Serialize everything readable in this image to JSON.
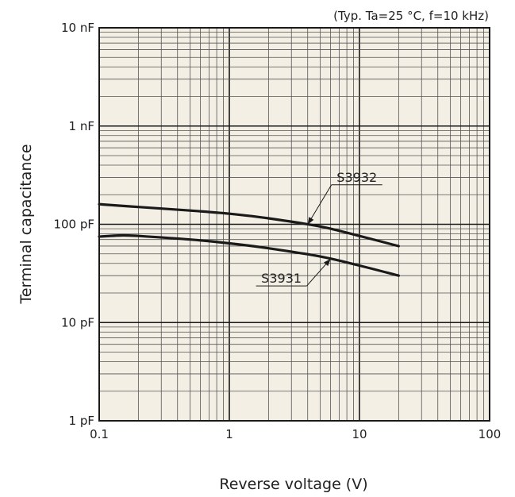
{
  "chart_data": {
    "type": "line",
    "condition_note": "(Typ. Ta=25 °C, f=10 kHz)",
    "xlabel": "Reverse voltage (V)",
    "ylabel": "Terminal capacitance",
    "x_scale": "log",
    "y_scale": "log",
    "xlim": [
      0.1,
      100
    ],
    "ylim_pF": [
      1,
      10000
    ],
    "x_tick_labels": [
      {
        "value": 0.1,
        "label": "0.1"
      },
      {
        "value": 1,
        "label": "1"
      },
      {
        "value": 10,
        "label": "10"
      },
      {
        "value": 100,
        "label": "100"
      }
    ],
    "y_tick_labels": [
      {
        "value": 1,
        "label": "1 pF"
      },
      {
        "value": 10,
        "label": "10 pF"
      },
      {
        "value": 100,
        "label": "100 pF"
      },
      {
        "value": 1000,
        "label": "1 nF"
      },
      {
        "value": 10000,
        "label": "10 nF"
      }
    ],
    "grid": true,
    "series": [
      {
        "name": "S3932",
        "x": [
          0.1,
          0.2,
          0.5,
          1,
          2,
          5,
          10,
          20
        ],
        "y_pF": [
          160,
          150,
          138,
          128,
          115,
          95,
          76,
          60
        ],
        "label_anchor_x": 4.0
      },
      {
        "name": "S3931",
        "x": [
          0.1,
          0.15,
          0.2,
          0.5,
          1,
          2,
          5,
          10,
          20
        ],
        "y_pF": [
          75,
          77,
          76,
          70,
          64,
          57,
          47,
          38,
          30
        ],
        "label_anchor_x": 6.0
      }
    ]
  },
  "colors": {
    "plot_background": "#f3efe4",
    "grid_minor": "#555555",
    "grid_major": "#1a1a1a",
    "curve": "#1a1a1a"
  }
}
